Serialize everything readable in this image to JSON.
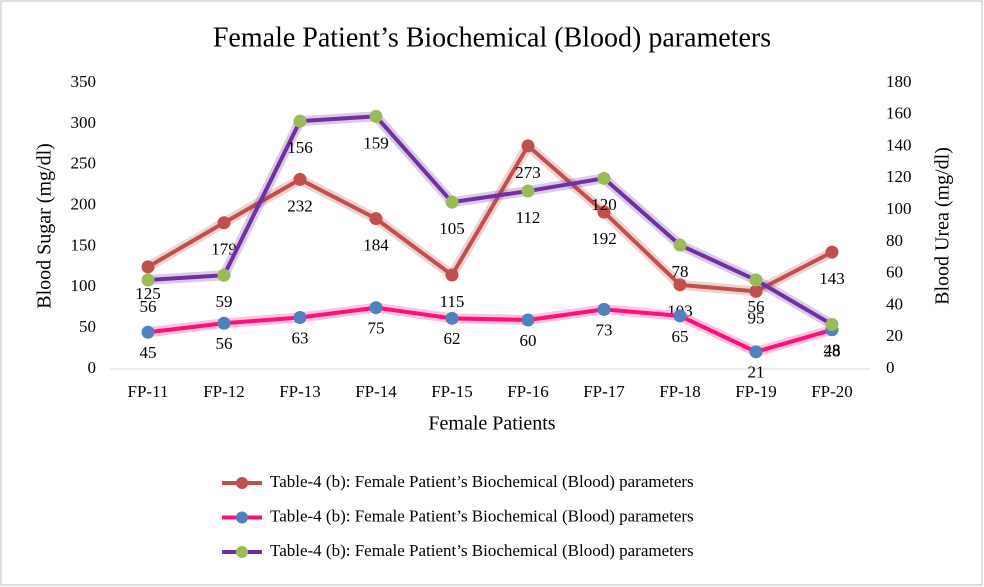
{
  "chart_data": {
    "type": "line",
    "title": "Female Patient’s Biochemical (Blood) parameters",
    "x_label": "Female Patients",
    "y_label": "Blood Sugar (mg/dl)",
    "y2_label": "Blood Urea (mg/dl)",
    "categories": [
      "FP-11",
      "FP-12",
      "FP-13",
      "FP-14",
      "FP-15",
      "FP-16",
      "FP-17",
      "FP-18",
      "FP-19",
      "FP-20"
    ],
    "ylim": [
      0,
      350
    ],
    "yticks": [
      0,
      50,
      100,
      150,
      200,
      250,
      300,
      350
    ],
    "y2lim": [
      0,
      180
    ],
    "y2ticks": [
      0,
      20,
      40,
      60,
      80,
      100,
      120,
      140,
      160,
      180
    ],
    "series": [
      {
        "name": "Table-4 (b): Female Patient’s Biochemical (Blood) parameters",
        "color": "#c0504d",
        "marker_color": "#c0504d",
        "values": [
          125,
          179,
          232,
          184,
          115,
          273,
          192,
          103,
          95,
          143
        ]
      },
      {
        "name": "Table-4 (b): Female Patient’s Biochemical (Blood) parameters",
        "color": "#ff0f7b",
        "marker_color": "#4f81bd",
        "values": [
          45,
          56,
          63,
          75,
          62,
          60,
          73,
          65,
          21,
          48
        ]
      },
      {
        "name": "Table-4 (b): Female Patient’s Biochemical (Blood) parameters",
        "color": "#7030a0",
        "marker_color": "#9bbb59",
        "axis": "y2",
        "values": [
          56,
          59,
          156,
          159,
          105,
          112,
          120,
          78,
          56,
          28
        ]
      }
    ]
  }
}
